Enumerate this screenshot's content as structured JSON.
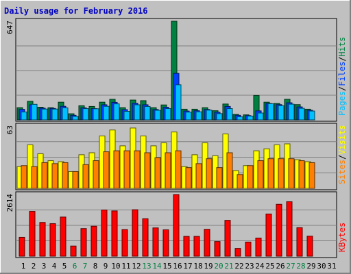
{
  "chart_data": {
    "type": "bar",
    "title": "Daily usage for February 2016",
    "x": [
      "1",
      "2",
      "3",
      "4",
      "5",
      "6",
      "7",
      "8",
      "9",
      "10",
      "11",
      "12",
      "13",
      "14",
      "15",
      "16",
      "17",
      "18",
      "19",
      "20",
      "21",
      "22",
      "23",
      "24",
      "25",
      "26",
      "27",
      "28",
      "29",
      "30",
      "31"
    ],
    "weekend_days": [
      "6",
      "7",
      "13",
      "14",
      "20",
      "21",
      "27",
      "28"
    ],
    "panels": [
      {
        "name": "hits-files-pages",
        "max_label": "647",
        "ylim": [
          0,
          647
        ],
        "series": [
          {
            "name": "Hits",
            "color": "#008040",
            "values": [
              80,
              122,
              83,
              80,
              116,
              40,
              93,
              88,
              116,
              135,
              80,
              130,
              126,
              80,
              98,
              647,
              70,
              70,
              80,
              60,
              104,
              36,
              33,
              160,
              116,
              108,
              135,
              100,
              70,
              0,
              0
            ]
          },
          {
            "name": "Files",
            "color": "#0040ff",
            "values": [
              69,
              99,
              77,
              75,
              89,
              30,
              79,
              74,
              99,
              115,
              67,
              109,
              99,
              68,
              83,
              305,
              58,
              60,
              68,
              50,
              88,
              30,
              28,
              59,
              108,
              100,
              112,
              85,
              63,
              0,
              0
            ]
          },
          {
            "name": "Pages",
            "color": "#00c0ff",
            "values": [
              52,
              102,
              71,
              71,
              79,
              23,
              74,
              73,
              89,
              105,
              56,
              99,
              88,
              63,
              74,
              230,
              51,
              53,
              64,
              41,
              74,
              20,
              25,
              45,
              106,
              93,
              103,
              76,
              58,
              0,
              0
            ]
          }
        ],
        "legend": [
          "Pages",
          "Files",
          "Hits"
        ]
      },
      {
        "name": "visits-sites",
        "max_label": "63",
        "ylim": [
          0,
          63
        ],
        "series": [
          {
            "name": "Visits",
            "color": "#ffff00",
            "values": [
              22,
              44,
              35,
              28,
              27,
              17,
              34,
              36,
              53,
              59,
              43,
              61,
              53,
              43,
              46,
              57,
              22,
              34,
              46,
              33,
              55,
              18,
              23,
              38,
              40,
              44,
              45,
              29,
              27,
              0,
              0
            ]
          },
          {
            "name": "Sites",
            "color": "#ff8000",
            "values": [
              23,
              22,
              26,
              25,
              26,
              17,
              24,
              28,
              37,
              38,
              38,
              38,
              36,
              31,
              36,
              38,
              21,
              25,
              30,
              21,
              36,
              14,
              23,
              28,
              30,
              30,
              30,
              28,
              26,
              0,
              0
            ]
          }
        ],
        "legend": [
          "Sites",
          "Visits"
        ]
      },
      {
        "name": "kbytes",
        "max_label": "2614",
        "ylim": [
          0,
          2614
        ],
        "series": [
          {
            "name": "KBytes",
            "color": "#ff0000",
            "values": [
              800,
              1900,
              1430,
              1380,
              1660,
              430,
              1170,
              1270,
              1960,
              1920,
              1130,
              1970,
              1590,
              1200,
              1120,
              2614,
              840,
              840,
              1140,
              620,
              1520,
              330,
              600,
              770,
              1790,
              2200,
              2310,
              1210,
              850,
              0,
              0
            ]
          }
        ],
        "legend": [
          "KBytes"
        ]
      }
    ]
  }
}
